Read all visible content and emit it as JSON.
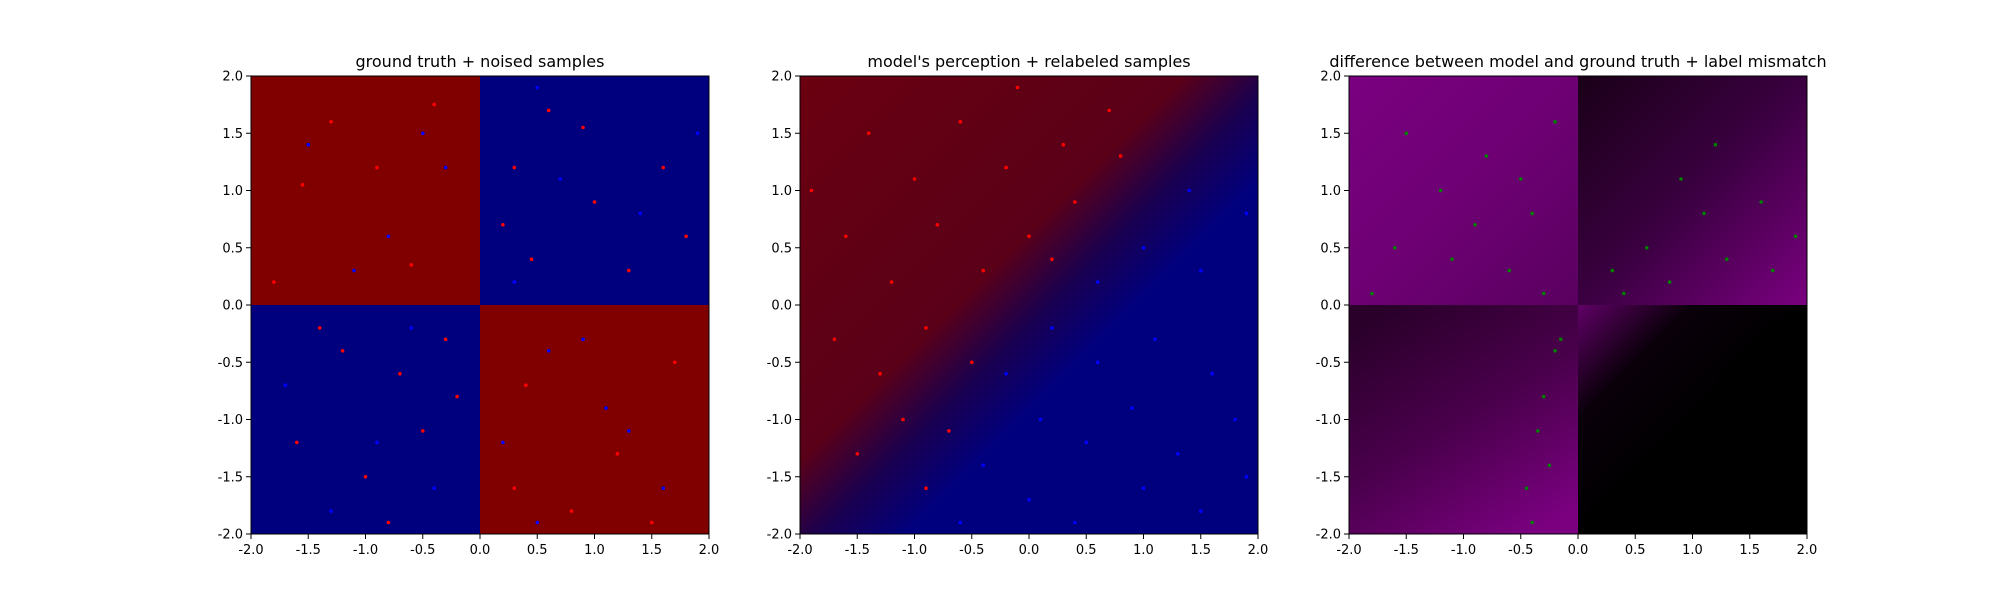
{
  "colors": {
    "red_region": "#800000",
    "blue_region": "#00007f",
    "red_points": "#ff0000",
    "blue_points": "#0000ff",
    "mismatch_points": "#008000",
    "mismatch_high": "#800080",
    "mismatch_low": "#000000"
  },
  "chart_data": [
    {
      "type": "scatter",
      "title": "ground truth + noised samples",
      "xlim": [
        -2.0,
        2.0
      ],
      "ylim": [
        -2.0,
        2.0
      ],
      "xticks": [
        "-2.0",
        "-1.5",
        "-1.0",
        "-0.5",
        "0.0",
        "0.5",
        "1.0",
        "1.5",
        "2.0"
      ],
      "yticks": [
        "-2.0",
        "-1.5",
        "-1.0",
        "-0.5",
        "0.0",
        "0.5",
        "1.0",
        "1.5",
        "2.0"
      ],
      "background": {
        "kind": "quadrants",
        "x_boundary": 0.0,
        "y_boundary": 0.0,
        "top_left": "red",
        "top_right": "blue",
        "bottom_left": "blue",
        "bottom_right": "red"
      },
      "series": [
        {
          "color": "red",
          "points": [
            [
              -1.3,
              1.6
            ],
            [
              -1.55,
              1.05
            ],
            [
              -0.9,
              1.2
            ],
            [
              -0.4,
              1.75
            ],
            [
              -1.8,
              0.2
            ],
            [
              -0.6,
              0.35
            ],
            [
              0.3,
              1.2
            ],
            [
              0.6,
              1.7
            ],
            [
              1.0,
              0.9
            ],
            [
              1.3,
              0.3
            ],
            [
              1.8,
              0.6
            ],
            [
              0.45,
              0.4
            ],
            [
              0.9,
              1.55
            ],
            [
              1.6,
              1.2
            ],
            [
              0.2,
              0.7
            ],
            [
              -1.2,
              -0.4
            ],
            [
              -0.7,
              -0.6
            ],
            [
              -0.5,
              -1.1
            ],
            [
              -1.0,
              -1.5
            ],
            [
              -0.3,
              -0.3
            ],
            [
              -1.6,
              -1.2
            ],
            [
              -0.8,
              -1.9
            ],
            [
              -0.2,
              -0.8
            ],
            [
              -1.4,
              -0.2
            ],
            [
              0.4,
              -0.7
            ],
            [
              1.2,
              -1.3
            ],
            [
              0.8,
              -1.8
            ],
            [
              1.7,
              -0.5
            ],
            [
              0.3,
              -1.6
            ],
            [
              1.5,
              -1.9
            ]
          ]
        },
        {
          "color": "blue",
          "points": [
            [
              -1.5,
              1.4
            ],
            [
              -0.8,
              0.6
            ],
            [
              -0.3,
              1.2
            ],
            [
              -1.1,
              0.3
            ],
            [
              -0.5,
              1.5
            ],
            [
              0.7,
              1.1
            ],
            [
              1.4,
              0.8
            ],
            [
              0.3,
              0.2
            ],
            [
              1.9,
              1.5
            ],
            [
              0.5,
              1.9
            ],
            [
              -1.7,
              -0.7
            ],
            [
              -0.9,
              -1.2
            ],
            [
              -0.4,
              -1.6
            ],
            [
              -1.3,
              -1.8
            ],
            [
              -0.6,
              -0.2
            ],
            [
              0.6,
              -0.4
            ],
            [
              1.1,
              -0.9
            ],
            [
              0.2,
              -1.2
            ],
            [
              1.6,
              -1.6
            ],
            [
              0.9,
              -0.3
            ],
            [
              1.3,
              -1.1
            ],
            [
              0.5,
              -1.9
            ]
          ]
        }
      ]
    },
    {
      "type": "scatter",
      "title": "model's perception + relabeled samples",
      "xlim": [
        -2.0,
        2.0
      ],
      "ylim": [
        -2.0,
        2.0
      ],
      "xticks": [
        "-2.0",
        "-1.5",
        "-1.0",
        "-0.5",
        "0.0",
        "0.5",
        "1.0",
        "1.5",
        "2.0"
      ],
      "yticks": [
        "-2.0",
        "-1.5",
        "-1.0",
        "-0.5",
        "0.0",
        "0.5",
        "1.0",
        "1.5",
        "2.0"
      ],
      "background": {
        "kind": "linear-gradient",
        "from": "top-left",
        "to": "bottom-right",
        "from_color": "red",
        "to_color": "blue"
      },
      "series": [
        {
          "color": "red",
          "points": [
            [
              -1.4,
              1.5
            ],
            [
              -1.0,
              1.1
            ],
            [
              -0.6,
              1.6
            ],
            [
              -0.2,
              1.2
            ],
            [
              0.3,
              1.4
            ],
            [
              0.7,
              1.7
            ],
            [
              -1.6,
              0.6
            ],
            [
              -1.2,
              0.2
            ],
            [
              -0.8,
              0.7
            ],
            [
              -0.4,
              0.3
            ],
            [
              0.0,
              0.6
            ],
            [
              0.4,
              0.9
            ],
            [
              -1.7,
              -0.3
            ],
            [
              -1.3,
              -0.6
            ],
            [
              -0.9,
              -0.2
            ],
            [
              -0.5,
              -0.5
            ],
            [
              -1.1,
              -1.0
            ],
            [
              -0.7,
              -1.1
            ],
            [
              -1.5,
              -1.3
            ],
            [
              -0.9,
              -1.6
            ],
            [
              0.2,
              0.4
            ],
            [
              0.8,
              1.3
            ],
            [
              -0.1,
              1.9
            ],
            [
              -1.9,
              1.0
            ]
          ]
        },
        {
          "color": "blue",
          "points": [
            [
              0.6,
              0.2
            ],
            [
              1.0,
              0.5
            ],
            [
              1.5,
              0.3
            ],
            [
              1.9,
              0.8
            ],
            [
              0.2,
              -0.2
            ],
            [
              0.6,
              -0.5
            ],
            [
              1.1,
              -0.3
            ],
            [
              1.6,
              -0.6
            ],
            [
              -0.2,
              -0.6
            ],
            [
              0.1,
              -1.0
            ],
            [
              0.5,
              -1.2
            ],
            [
              0.9,
              -0.9
            ],
            [
              1.3,
              -1.3
            ],
            [
              1.8,
              -1.0
            ],
            [
              -0.4,
              -1.4
            ],
            [
              0.0,
              -1.7
            ],
            [
              0.4,
              -1.9
            ],
            [
              1.0,
              -1.6
            ],
            [
              1.5,
              -1.8
            ],
            [
              1.9,
              -1.5
            ],
            [
              1.4,
              1.0
            ],
            [
              -0.6,
              -1.9
            ]
          ]
        }
      ]
    },
    {
      "type": "scatter",
      "title": "difference between model and ground truth + label mismatch",
      "xlim": [
        -2.0,
        2.0
      ],
      "ylim": [
        -2.0,
        2.0
      ],
      "xticks": [
        "-2.0",
        "-1.5",
        "-1.0",
        "-0.5",
        "0.0",
        "0.5",
        "1.0",
        "1.5",
        "2.0"
      ],
      "yticks": [
        "-2.0",
        "-1.5",
        "-1.0",
        "-0.5",
        "0.0",
        "0.5",
        "1.0",
        "1.5",
        "2.0"
      ],
      "background": {
        "kind": "quadrant-magnitude",
        "x_boundary": 0.0,
        "y_boundary": 0.0,
        "high_color": "#800080",
        "low_color": "#000000"
      },
      "series": [
        {
          "color": "green",
          "points": [
            [
              -1.5,
              1.5
            ],
            [
              -1.2,
              1.0
            ],
            [
              -0.8,
              1.3
            ],
            [
              -0.4,
              0.8
            ],
            [
              -0.2,
              1.6
            ],
            [
              -1.6,
              0.5
            ],
            [
              -1.1,
              0.4
            ],
            [
              -0.6,
              0.3
            ],
            [
              -0.3,
              0.1
            ],
            [
              -1.8,
              0.1
            ],
            [
              -0.9,
              0.7
            ],
            [
              -0.5,
              1.1
            ],
            [
              0.3,
              0.3
            ],
            [
              0.6,
              0.5
            ],
            [
              0.8,
              0.2
            ],
            [
              1.1,
              0.8
            ],
            [
              1.3,
              0.4
            ],
            [
              1.6,
              0.9
            ],
            [
              1.9,
              0.6
            ],
            [
              0.9,
              1.1
            ],
            [
              1.2,
              1.4
            ],
            [
              0.4,
              0.1
            ],
            [
              1.7,
              0.3
            ],
            [
              -0.2,
              -0.4
            ],
            [
              -0.3,
              -0.8
            ],
            [
              -0.35,
              -1.1
            ],
            [
              -0.25,
              -1.4
            ],
            [
              -0.45,
              -1.6
            ],
            [
              -0.15,
              -0.3
            ],
            [
              -0.4,
              -1.9
            ]
          ]
        }
      ]
    }
  ]
}
